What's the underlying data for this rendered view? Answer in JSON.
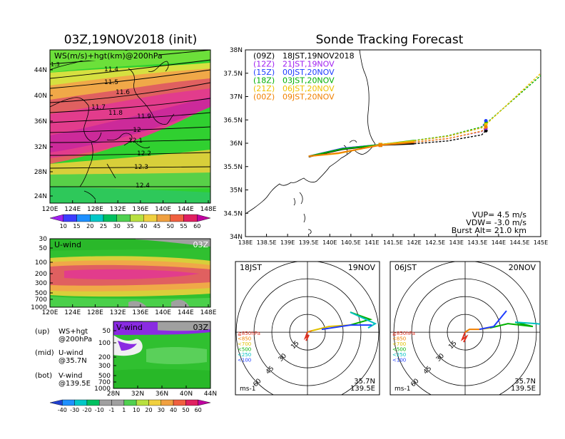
{
  "left": {
    "title": "03Z,19NOV2018 (init)",
    "map": {
      "label": "WS(m/s)+hgt(km)@200hPa",
      "corner_value": "1.3",
      "lat_ticks": [
        "44N",
        "40N",
        "36N",
        "32N",
        "28N",
        "24N"
      ],
      "lon_ticks": [
        "120E",
        "124E",
        "128E",
        "132E",
        "136E",
        "140E",
        "144E",
        "148E"
      ],
      "contour_labels": [
        "11.4",
        "11.5",
        "11.6",
        "11.7",
        "11.8",
        "11.9",
        "12",
        "12.1",
        "12.2",
        "12.3",
        "12.4"
      ]
    },
    "ws_colorbar": [
      "10",
      "15",
      "20",
      "25",
      "30",
      "35",
      "40",
      "45",
      "50",
      "55",
      "60"
    ],
    "uwind": {
      "label": "U-wind",
      "time": "03Z",
      "p_ticks": [
        "30",
        "50",
        "100",
        "200",
        "300",
        "500",
        "700",
        "1000"
      ],
      "lon_ticks": [
        "120E",
        "124E",
        "128E",
        "132E",
        "136E",
        "140E",
        "144E",
        "148E"
      ]
    },
    "vwind": {
      "label": "V-wind",
      "time": "03Z",
      "p_ticks": [
        "50",
        "100",
        "200",
        "300",
        "500",
        "700",
        "1000"
      ],
      "lat_ticks": [
        "28N",
        "32N",
        "36N",
        "40N",
        "44N"
      ]
    },
    "legend": [
      {
        "k": "(up)",
        "v": "WS+hgt"
      },
      {
        "k": "",
        "v": "@200hPa"
      },
      {
        "k": "(mid)",
        "v": "U-wind"
      },
      {
        "k": "",
        "v": "@35.7N"
      },
      {
        "k": "(bot)",
        "v": "V-wind"
      },
      {
        "k": "",
        "v": "@139.5E"
      }
    ],
    "wind_colorbar": [
      "-40",
      "-30",
      "-20",
      "-10",
      "-1",
      "1",
      "10",
      "20",
      "30",
      "40",
      "50",
      "60"
    ]
  },
  "right": {
    "title": "Sonde Tracking Forecast",
    "colors": {
      "00Z": "#000000",
      "12Z": "#a020f0",
      "15Z": "#1e3cff",
      "18Z": "#00b000",
      "21Z": "#f0c000",
      "00Z2": "#f08000"
    },
    "runs": [
      {
        "z": "(09Z)",
        "t": "18JST,19NOV2018",
        "color": "#000000"
      },
      {
        "z": "(12Z)",
        "t": "21JST,19NOV",
        "color": "#a020f0"
      },
      {
        "z": "(15Z)",
        "t": "00JST,20NOV",
        "color": "#1e3cff"
      },
      {
        "z": "(18Z)",
        "t": "03JST,20NOV",
        "color": "#00b000"
      },
      {
        "z": "(21Z)",
        "t": "06JST,20NOV",
        "color": "#f0c000"
      },
      {
        "z": "(00Z)",
        "t": "09JST,20NOV",
        "color": "#f08000"
      }
    ],
    "lat_ticks": [
      "38N",
      "37.5N",
      "37N",
      "36.5N",
      "36N",
      "35.5N",
      "35N",
      "34.5N",
      "34N"
    ],
    "lon_ticks": [
      "138E",
      "138.5E",
      "139E",
      "139.5E",
      "140E",
      "140.5E",
      "141E",
      "141.5E",
      "142E",
      "142.5E",
      "143E",
      "143.5E",
      "144E",
      "144.5E",
      "145E"
    ],
    "vup": "VUP= 4.5 m/s",
    "vdw": "VDW= -3.0 m/s",
    "burst": "Burst Alt= 21.0 km"
  },
  "hodo1": {
    "tl": "18JST",
    "tr": "19NOV",
    "lat": "35.7N",
    "lon": "139.5E",
    "unit": "ms-1"
  },
  "hodo2": {
    "tl": "06JST",
    "tr": "20NOV",
    "lat": "35.7N",
    "lon": "139.5E",
    "unit": "ms-1"
  },
  "hodo_rings": [
    "15",
    "30",
    "45",
    "60"
  ],
  "hodo_levels": [
    {
      "t": "≧850hPa",
      "c": "#e03020"
    },
    {
      "t": "<850",
      "c": "#f08000"
    },
    {
      "t": "<700",
      "c": "#e0c000"
    },
    {
      "t": "<500",
      "c": "#00b000"
    },
    {
      "t": "<250",
      "c": "#00c0c0"
    },
    {
      "t": "<100",
      "c": "#1e3cff"
    }
  ],
  "chart_data": [
    {
      "type": "line",
      "title": "Sonde Tracking Forecast",
      "xlim": [
        138,
        145
      ],
      "ylim": [
        34,
        38
      ],
      "series": [
        {
          "name": "(09Z) 18JST,19NOV2018",
          "x": [
            139.5,
            140.3,
            141.2,
            142.0,
            142.8,
            143.6,
            143.7
          ],
          "y": [
            35.71,
            35.87,
            35.96,
            35.99,
            36.05,
            36.18,
            36.27
          ]
        },
        {
          "name": "(12Z) 21JST,19NOV",
          "x": [
            139.5,
            140.3,
            141.2,
            142.0,
            142.8,
            143.6,
            143.7
          ],
          "y": [
            35.72,
            35.89,
            35.97,
            36.02,
            36.1,
            36.25,
            36.32
          ]
        },
        {
          "name": "(15Z) 00JST,20NOV",
          "x": [
            139.5,
            140.3,
            141.2,
            142.0,
            142.8,
            143.6,
            143.7
          ],
          "y": [
            35.72,
            35.89,
            35.97,
            36.05,
            36.15,
            36.33,
            36.48
          ]
        },
        {
          "name": "(18Z) 03JST,20NOV",
          "x": [
            139.5,
            140.3,
            141.2,
            142.0,
            142.8,
            143.6,
            143.7,
            145.0
          ],
          "y": [
            35.72,
            35.88,
            35.97,
            36.06,
            36.16,
            36.35,
            36.42,
            37.45
          ]
        },
        {
          "name": "(21Z) 06JST,20NOV",
          "x": [
            139.5,
            140.2,
            141.2,
            142.0,
            142.8,
            143.6,
            143.7,
            145.0
          ],
          "y": [
            35.72,
            35.78,
            35.97,
            36.05,
            36.15,
            36.33,
            36.4,
            37.5
          ]
        },
        {
          "name": "(00Z) 09JST,20NOV",
          "x": [
            139.5,
            140.2,
            141.2,
            142.0,
            142.8,
            143.6,
            143.7
          ],
          "y": [
            35.72,
            35.79,
            35.96,
            36.02,
            36.1,
            36.26,
            36.35
          ]
        }
      ]
    }
  ]
}
